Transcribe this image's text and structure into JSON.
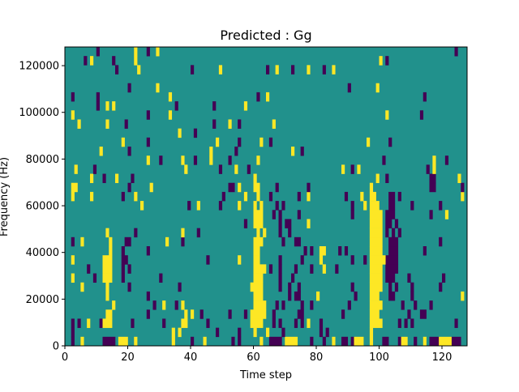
{
  "chart_data": {
    "type": "heatmap",
    "title": "Predicted : Gg",
    "xlabel": "Time step",
    "ylabel": "Frequency (Hz)",
    "xlim": [
      0,
      128
    ],
    "ylim": [
      0,
      128000
    ],
    "n_cols": 128,
    "n_rows": 33,
    "xticks": [
      0,
      20,
      40,
      60,
      80,
      100,
      120
    ],
    "yticks": [
      0,
      20000,
      40000,
      60000,
      80000,
      100000,
      120000
    ],
    "grid": false,
    "colors": {
      "low": "#440154",
      "mid": "#21918c",
      "high": "#fde725"
    },
    "background_value": "mid",
    "cells_note": "rows indexed from bottom (0) to top (32); each entry lists column ranges [start,end] with value low (purple) or high (yellow); all other cells are mid",
    "rows": [
      {
        "low": [
          [
            2
          ],
          [
            12,
            15
          ],
          [
            40
          ],
          [
            53
          ],
          [
            55
          ],
          [
            65,
            68
          ],
          [
            78
          ],
          [
            82
          ],
          [
            88,
            89
          ],
          [
            91
          ],
          [
            101,
            102
          ],
          [
            106
          ],
          [
            111
          ],
          [
            116,
            118
          ],
          [
            123,
            125
          ]
        ],
        "high": [
          [
            5
          ],
          [
            17,
            19
          ],
          [
            22
          ],
          [
            34
          ],
          [
            44
          ],
          [
            62
          ],
          [
            70,
            73
          ],
          [
            85
          ],
          [
            92,
            94
          ],
          [
            97
          ],
          [
            107,
            108
          ],
          [
            114
          ],
          [
            119,
            122
          ]
        ]
      },
      {
        "low": [
          [
            2
          ],
          [
            48
          ],
          [
            55
          ],
          [
            69
          ],
          [
            81
          ],
          [
            83
          ]
        ],
        "high": [
          [
            34
          ],
          [
            36
          ],
          [
            60
          ],
          [
            64
          ],
          [
            97
          ]
        ]
      },
      {
        "low": [
          [
            2
          ],
          [
            4
          ],
          [
            11
          ],
          [
            21
          ],
          [
            31
          ],
          [
            45
          ],
          [
            66
          ],
          [
            68
          ],
          [
            73
          ],
          [
            75
          ],
          [
            81
          ],
          [
            106
          ],
          [
            108
          ],
          [
            110
          ],
          [
            124
          ]
        ],
        "high": [
          [
            7
          ],
          [
            12,
            14
          ],
          [
            37,
            38
          ],
          [
            59,
            62
          ],
          [
            77
          ],
          [
            97,
            100
          ]
        ]
      },
      {
        "low": [
          [
            26
          ],
          [
            43
          ],
          [
            52
          ],
          [
            57
          ],
          [
            66
          ],
          [
            74,
            75
          ],
          [
            88
          ],
          [
            109
          ],
          [
            113,
            114
          ]
        ],
        "high": [
          [
            13,
            14
          ],
          [
            38
          ],
          [
            40
          ],
          [
            59,
            63
          ],
          [
            97,
            99
          ]
        ]
      },
      {
        "low": [
          [
            28
          ],
          [
            35
          ],
          [
            67
          ],
          [
            69
          ],
          [
            75
          ],
          [
            78
          ],
          [
            90
          ],
          [
            107
          ],
          [
            111
          ],
          [
            116
          ]
        ],
        "high": [
          [
            15
          ],
          [
            31
          ],
          [
            37
          ],
          [
            60,
            63
          ],
          [
            97,
            100
          ]
        ]
      },
      {
        "low": [
          [
            26
          ],
          [
            71
          ],
          [
            73,
            74
          ],
          [
            92
          ],
          [
            103,
            104
          ],
          [
            110
          ]
        ],
        "high": [
          [
            13
          ],
          [
            60,
            62
          ],
          [
            80
          ],
          [
            97,
            99
          ],
          [
            126
          ]
        ]
      },
      {
        "low": [
          [
            20
          ],
          [
            36
          ],
          [
            68
          ],
          [
            71
          ],
          [
            74
          ],
          [
            91
          ],
          [
            103
          ],
          [
            105
          ],
          [
            110
          ],
          [
            119
          ]
        ],
        "high": [
          [
            5
          ],
          [
            13
          ],
          [
            59,
            62
          ],
          [
            97,
            100
          ]
        ]
      },
      {
        "low": [
          [
            9
          ],
          [
            18
          ],
          [
            30
          ],
          [
            68
          ],
          [
            72
          ],
          [
            102,
            104
          ],
          [
            109
          ],
          [
            120
          ]
        ],
        "high": [
          [
            2
          ],
          [
            12,
            14
          ],
          [
            60,
            62
          ],
          [
            97,
            100
          ]
        ]
      },
      {
        "low": [
          [
            7
          ],
          [
            18
          ],
          [
            20
          ],
          [
            65
          ],
          [
            68
          ],
          [
            73
          ],
          [
            78
          ],
          [
            86
          ],
          [
            102,
            105
          ]
        ],
        "high": [
          [
            12,
            14
          ],
          [
            60,
            63
          ],
          [
            82
          ],
          [
            97,
            100
          ]
        ]
      },
      {
        "low": [
          [
            18,
            19
          ],
          [
            45
          ],
          [
            68
          ],
          [
            75
          ],
          [
            91
          ],
          [
            95
          ],
          [
            102,
            105
          ]
        ],
        "high": [
          [
            2
          ],
          [
            12,
            14
          ],
          [
            55
          ],
          [
            60,
            61
          ],
          [
            81
          ],
          [
            97,
            101
          ]
        ]
      },
      {
        "low": [
          [
            18
          ],
          [
            26
          ],
          [
            76
          ],
          [
            78
          ],
          [
            87
          ],
          [
            89
          ],
          [
            103,
            105
          ],
          [
            114
          ]
        ],
        "high": [
          [
            14
          ],
          [
            60,
            61
          ],
          [
            81,
            82
          ],
          [
            97,
            100
          ]
        ]
      },
      {
        "low": [
          [
            2
          ],
          [
            19,
            20
          ],
          [
            37
          ],
          [
            69
          ],
          [
            73,
            74
          ],
          [
            103,
            105
          ],
          [
            119
          ]
        ],
        "high": [
          [
            5
          ],
          [
            14
          ],
          [
            32
          ],
          [
            60,
            62
          ],
          [
            97,
            100
          ]
        ]
      },
      {
        "low": [
          [
            22
          ],
          [
            42
          ],
          [
            68
          ],
          [
            71
          ],
          [
            102
          ],
          [
            104
          ],
          [
            106
          ]
        ],
        "high": [
          [
            13
          ],
          [
            37
          ],
          [
            61
          ],
          [
            63
          ],
          [
            97,
            100
          ]
        ]
      },
      {
        "low": [
          [
            57
          ],
          [
            68
          ],
          [
            70,
            71
          ],
          [
            102,
            103
          ],
          [
            105
          ]
        ],
        "high": [
          [
            60,
            62
          ],
          [
            77
          ],
          [
            97,
            100
          ]
        ]
      },
      {
        "low": [
          [
            66
          ],
          [
            68
          ],
          [
            74
          ],
          [
            91
          ],
          [
            102,
            104
          ],
          [
            116
          ]
        ],
        "high": [
          [
            60,
            62
          ],
          [
            97,
            100
          ],
          [
            121
          ]
        ]
      },
      {
        "low": [
          [
            39
          ],
          [
            49
          ],
          [
            67
          ],
          [
            69
          ],
          [
            91
          ],
          [
            103,
            104
          ],
          [
            110
          ],
          [
            119
          ]
        ],
        "high": [
          [
            24
          ],
          [
            42
          ],
          [
            55
          ],
          [
            60
          ],
          [
            62
          ],
          [
            95
          ],
          [
            97,
            99
          ]
        ]
      },
      {
        "low": [
          [
            18
          ],
          [
            50
          ],
          [
            65
          ],
          [
            74
          ],
          [
            89
          ],
          [
            103,
            104
          ],
          [
            106
          ]
        ],
        "high": [
          [
            2
          ],
          [
            8
          ],
          [
            22
          ],
          [
            57
          ],
          [
            61
          ],
          [
            77
          ],
          [
            94
          ],
          [
            97,
            98
          ],
          [
            126
          ]
        ]
      },
      {
        "low": [
          [
            20
          ],
          [
            52,
            53
          ],
          [
            67
          ],
          [
            77
          ],
          [
            116,
            117
          ],
          [
            126
          ]
        ],
        "high": [
          [
            2,
            3
          ],
          [
            27
          ],
          [
            55
          ],
          [
            60,
            61
          ],
          [
            97
          ]
        ]
      },
      {
        "low": [
          [
            12
          ],
          [
            21
          ],
          [
            102
          ],
          [
            116,
            117
          ]
        ],
        "high": [
          [
            8
          ],
          [
            16
          ],
          [
            60
          ],
          [
            99
          ],
          [
            125
          ]
        ]
      },
      {
        "low": [
          [
            9
          ],
          [
            49
          ],
          [
            58
          ],
          [
            91
          ],
          [
            115
          ]
        ],
        "high": [
          [
            3
          ],
          [
            38
          ],
          [
            54
          ],
          [
            88
          ],
          [
            93
          ],
          [
            117
          ]
        ]
      },
      {
        "low": [
          [
            30
          ],
          [
            41
          ],
          [
            52
          ],
          [
            101
          ],
          [
            121
          ]
        ],
        "high": [
          [
            26
          ],
          [
            37
          ],
          [
            46
          ],
          [
            61
          ],
          [
            117
          ]
        ]
      },
      {
        "low": [
          [
            20
          ],
          [
            54
          ],
          [
            75
          ]
        ],
        "high": [
          [
            11
          ],
          [
            46
          ],
          [
            72
          ]
        ]
      },
      {
        "low": [
          [
            26
          ],
          [
            55
          ],
          [
            65
          ],
          [
            103
          ]
        ],
        "high": [
          [
            18
          ],
          [
            48
          ],
          [
            62
          ],
          [
            96
          ]
        ]
      },
      {
        "low": [
          [
            41
          ]
        ],
        "high": [
          [
            36
          ]
        ]
      },
      {
        "low": [
          [
            19
          ],
          [
            47
          ],
          [
            55
          ]
        ],
        "high": [
          [
            4
          ],
          [
            13
          ],
          [
            52
          ],
          [
            66
          ]
        ]
      },
      {
        "low": [
          [
            26
          ],
          [
            113
          ]
        ],
        "high": [
          [
            2
          ],
          [
            33
          ],
          [
            102
          ]
        ]
      },
      {
        "low": [
          [
            10
          ],
          [
            35
          ],
          [
            47
          ]
        ],
        "high": [
          [
            13
          ],
          [
            15
          ],
          [
            57
          ]
        ]
      },
      {
        "low": [
          [
            2
          ],
          [
            10
          ],
          [
            61
          ],
          [
            114
          ]
        ],
        "high": [
          [
            33
          ],
          [
            64
          ]
        ]
      },
      {
        "low": [
          [
            20
          ],
          [
            90
          ]
        ],
        "high": [
          [
            29
          ],
          [
            99
          ]
        ]
      },
      {
        "low": [],
        "high": []
      },
      {
        "low": [
          [
            16
          ],
          [
            40
          ],
          [
            64
          ],
          [
            72
          ],
          [
            82
          ]
        ],
        "high": [
          [
            23
          ],
          [
            49
          ],
          [
            67
          ],
          [
            77
          ],
          [
            85
          ]
        ]
      },
      {
        "low": [
          [
            6
          ],
          [
            15
          ],
          [
            102
          ]
        ],
        "high": [
          [
            8
          ],
          [
            22
          ],
          [
            100
          ]
        ]
      },
      {
        "low": [
          [
            10
          ],
          [
            26
          ],
          [
            124
          ]
        ],
        "high": [
          [
            22
          ],
          [
            29
          ]
        ]
      }
    ]
  }
}
